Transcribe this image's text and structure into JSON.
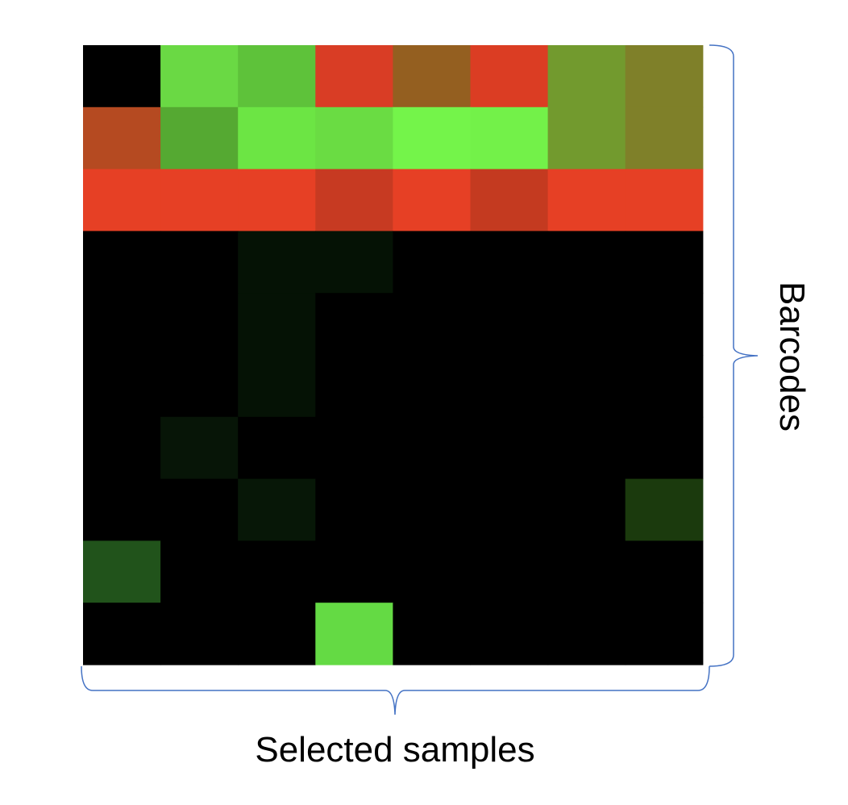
{
  "chart_data": {
    "type": "heatmap",
    "title": "",
    "xlabel": "Selected samples",
    "ylabel": "Barcodes",
    "n_rows": 10,
    "n_cols": 8,
    "cell_colors": [
      [
        "#000000",
        "#6ad944",
        "#5ec23a",
        "#d93d25",
        "#945f20",
        "#db3d23",
        "#729a2e",
        "#7f8029"
      ],
      [
        "#b54a21",
        "#55a932",
        "#6ce544",
        "#6adc43",
        "#74f44a",
        "#73f149",
        "#729a2e",
        "#7f8029"
      ],
      [
        "#e64025",
        "#e64025",
        "#e64025",
        "#c73a22",
        "#e64025",
        "#c43a20",
        "#e64025",
        "#e64025"
      ],
      [
        "#000000",
        "#000000",
        "#051205",
        "#051205",
        "#000000",
        "#000000",
        "#000000",
        "#000000"
      ],
      [
        "#000000",
        "#000000",
        "#051205",
        "#000000",
        "#000000",
        "#000000",
        "#000000",
        "#000000"
      ],
      [
        "#000000",
        "#000000",
        "#051205",
        "#000000",
        "#000000",
        "#000000",
        "#000000",
        "#000000"
      ],
      [
        "#000000",
        "#071507",
        "#000000",
        "#000000",
        "#000000",
        "#000000",
        "#000000",
        "#000000"
      ],
      [
        "#000000",
        "#000000",
        "#071707",
        "#000000",
        "#000000",
        "#000000",
        "#000000",
        "#1b3a0d"
      ],
      [
        "#21531b",
        "#000000",
        "#000000",
        "#000000",
        "#000000",
        "#000000",
        "#000000",
        "#000000"
      ],
      [
        "#000000",
        "#000000",
        "#000000",
        "#64da44",
        "#000000",
        "#000000",
        "#000000",
        "#000000"
      ]
    ],
    "brace_color": "#4472c4",
    "grid": false,
    "legend": "none"
  }
}
